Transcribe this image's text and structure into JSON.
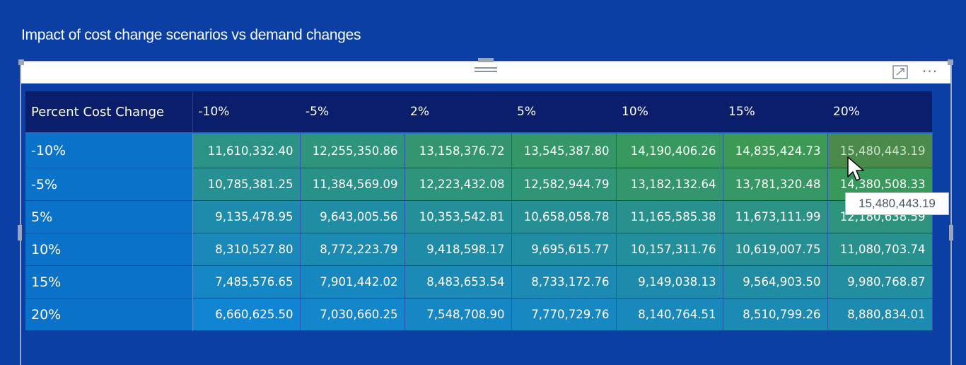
{
  "visual": {
    "title": "Impact of cost change scenarios vs demand changes"
  },
  "matrix": {
    "corner_header": "Percent Cost Change",
    "columns": [
      "-10%",
      "-5%",
      "2%",
      "5%",
      "10%",
      "15%",
      "20%"
    ],
    "rows": [
      {
        "label": "-10%",
        "values": [
          "11,610,332.40",
          "12,255,350.86",
          "13,158,376.72",
          "13,545,387.80",
          "14,190,406.26",
          "14,835,424.73",
          "15,480,443.19"
        ]
      },
      {
        "label": "-5%",
        "values": [
          "10,785,381.25",
          "11,384,569.09",
          "12,223,432.08",
          "12,582,944.79",
          "13,182,132.64",
          "13,781,320.48",
          "14,380,508.33"
        ]
      },
      {
        "label": "5%",
        "values": [
          "9,135,478.95",
          "9,643,005.56",
          "10,353,542.81",
          "10,658,058.78",
          "11,165,585.38",
          "11,673,111.99",
          "12,180,638.59"
        ]
      },
      {
        "label": "10%",
        "values": [
          "8,310,527.80",
          "8,772,223.79",
          "9,418,598.17",
          "9,695,615.77",
          "10,157,311.76",
          "10,619,007.75",
          "11,080,703.74"
        ]
      },
      {
        "label": "15%",
        "values": [
          "7,485,576.65",
          "7,901,442.02",
          "8,483,653.54",
          "8,733,172.76",
          "9,149,038.13",
          "9,564,903.50",
          "9,980,768.87"
        ]
      },
      {
        "label": "20%",
        "values": [
          "6,660,625.50",
          "7,030,660.25",
          "7,548,708.90",
          "7,770,729.76",
          "8,140,764.51",
          "8,510,799.26",
          "8,880,834.01"
        ]
      }
    ],
    "hovered_cell": {
      "row": 0,
      "col": 6
    }
  },
  "tooltip": {
    "text": "15,480,443.19"
  },
  "colors": {
    "background": "#0b3fa4",
    "header": "#0b1e6b",
    "row_header": "#0a72c8",
    "scale_low": "#1185d2",
    "scale_high": "#3f9c4a"
  },
  "icons": {
    "grip": "drag-grip-icon",
    "focus": "focus-mode-icon",
    "more": "more-options-icon",
    "cursor": "mouse-pointer-icon"
  }
}
